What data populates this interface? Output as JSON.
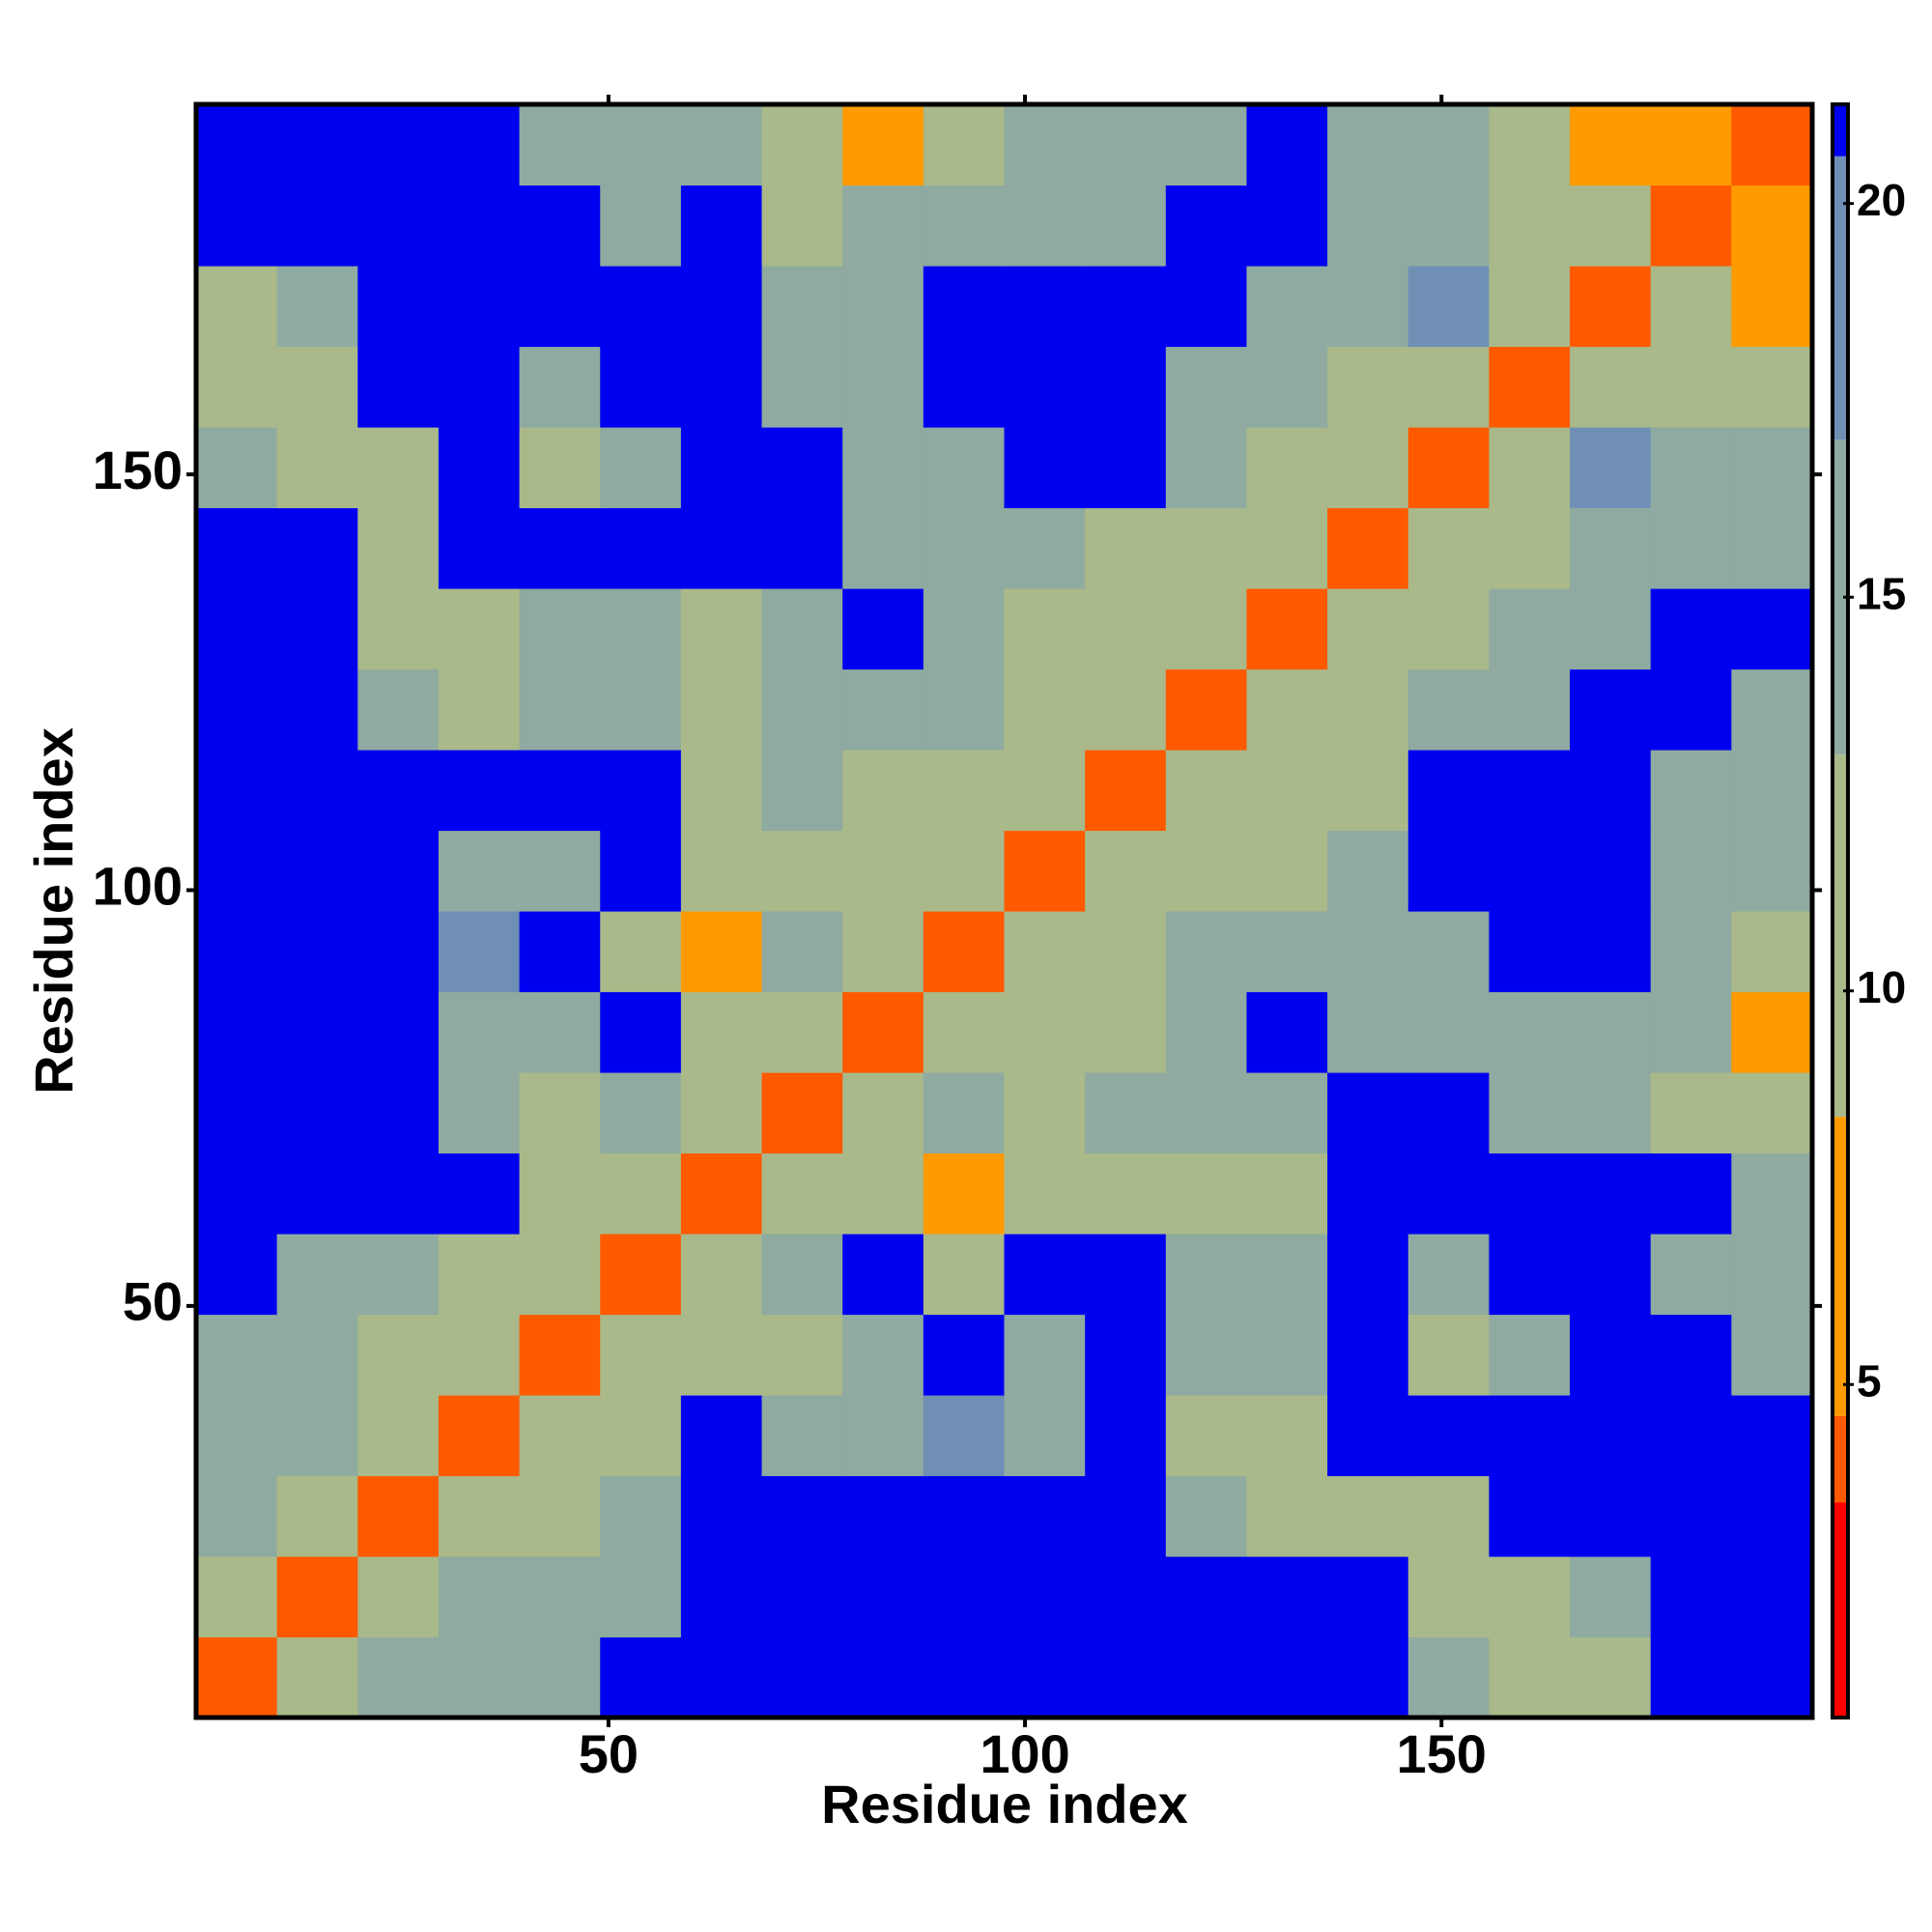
{
  "chart_data": {
    "type": "heatmap",
    "x_label": "Residue index",
    "y_label": "Residue index",
    "bins": [
      0.5,
      10.2,
      19.9,
      29.6,
      39.3,
      49,
      58.7,
      68.4,
      78.1,
      87.8,
      97.5,
      107.2,
      116.9,
      126.6,
      136.3,
      146,
      155.7,
      165.4,
      175.1,
      184.8,
      194.5
    ],
    "z": [
      [
        4,
        10,
        13,
        14,
        15,
        21,
        21,
        21,
        21,
        21,
        21,
        21,
        21,
        21,
        21,
        15,
        12,
        9,
        21,
        21
      ],
      [
        10,
        4,
        10,
        13,
        13,
        16,
        21,
        21,
        21,
        21,
        21,
        21,
        21,
        21,
        21,
        9,
        11,
        14,
        21,
        21
      ],
      [
        13,
        10,
        4,
        10,
        12,
        15,
        21,
        21,
        21,
        21,
        21,
        21,
        14,
        9,
        12,
        10,
        21,
        21,
        21,
        21
      ],
      [
        14,
        13,
        10,
        4,
        10,
        12,
        21,
        13,
        13,
        17,
        16,
        21,
        12,
        9,
        21,
        21,
        21,
        21,
        21,
        21
      ],
      [
        15,
        13,
        12,
        10,
        4,
        10,
        11,
        12,
        14,
        21,
        16,
        21,
        13,
        13,
        21,
        12,
        13,
        21,
        21,
        15
      ],
      [
        21,
        16,
        15,
        12,
        10,
        4,
        10,
        13,
        21,
        9,
        21,
        21,
        14,
        14,
        21,
        13,
        21,
        21,
        15,
        15
      ],
      [
        21,
        21,
        21,
        21,
        11,
        10,
        4,
        10,
        12,
        8,
        10,
        9,
        9,
        12,
        21,
        21,
        21,
        21,
        21,
        16
      ],
      [
        21,
        21,
        21,
        13,
        12,
        13,
        10,
        4,
        10,
        13,
        12,
        13,
        14,
        15,
        21,
        21,
        15,
        14,
        11,
        10
      ],
      [
        21,
        21,
        21,
        13,
        14,
        21,
        12,
        10,
        4,
        10,
        12,
        12,
        13,
        21,
        13,
        16,
        15,
        13,
        13,
        8
      ],
      [
        21,
        21,
        21,
        17,
        21,
        9,
        8,
        13,
        10,
        4,
        10,
        12,
        14,
        13,
        13,
        15,
        21,
        21,
        14,
        9
      ],
      [
        21,
        21,
        21,
        16,
        16,
        21,
        10,
        12,
        12,
        10,
        4,
        10,
        12,
        12,
        13,
        21,
        21,
        21,
        14,
        14
      ],
      [
        21,
        21,
        21,
        21,
        21,
        21,
        9,
        13,
        12,
        12,
        10,
        4,
        10,
        9,
        9,
        21,
        21,
        21,
        16,
        15
      ],
      [
        21,
        21,
        14,
        12,
        13,
        14,
        9,
        14,
        13,
        14,
        12,
        10,
        4,
        10,
        10,
        14,
        15,
        21,
        21,
        15
      ],
      [
        21,
        21,
        9,
        9,
        13,
        14,
        12,
        15,
        21,
        13,
        12,
        9,
        10,
        4,
        10,
        12,
        13,
        15,
        21,
        21
      ],
      [
        21,
        21,
        12,
        21,
        21,
        21,
        21,
        21,
        13,
        13,
        13,
        9,
        10,
        10,
        4,
        10,
        11,
        14,
        14,
        16
      ],
      [
        15,
        9,
        10,
        21,
        12,
        13,
        21,
        21,
        16,
        15,
        21,
        21,
        14,
        12,
        10,
        4,
        10,
        17,
        14,
        15
      ],
      [
        12,
        11,
        21,
        21,
        13,
        21,
        21,
        15,
        15,
        21,
        21,
        21,
        15,
        13,
        11,
        10,
        4,
        10,
        12,
        12
      ],
      [
        9,
        14,
        21,
        21,
        21,
        21,
        21,
        14,
        13,
        21,
        21,
        21,
        21,
        15,
        14,
        17,
        10,
        4,
        10,
        8
      ],
      [
        21,
        21,
        21,
        21,
        21,
        15,
        21,
        11,
        13,
        14,
        14,
        16,
        21,
        21,
        14,
        14,
        12,
        10,
        4,
        8
      ],
      [
        21,
        21,
        21,
        21,
        15,
        15,
        16,
        10,
        8,
        9,
        14,
        15,
        15,
        21,
        16,
        15,
        12,
        8,
        8,
        4
      ]
    ],
    "xlim": [
      0.5,
      194.5
    ],
    "ylim": [
      0.5,
      194.5
    ],
    "xticks": [
      50,
      100,
      150
    ],
    "yticks": [
      50,
      100,
      150
    ],
    "zlim": [
      0.77,
      21.26
    ],
    "zticks": [
      5,
      10,
      15,
      20
    ],
    "color_bounds": [
      3.5,
      4.6,
      8.4,
      13,
      17,
      20.6
    ],
    "colors": [
      "#ff0000",
      "#ff5a00",
      "#ff9a00",
      "#a9b98a",
      "#8faaa0",
      "#6f8fb5",
      "#0000f0"
    ]
  }
}
